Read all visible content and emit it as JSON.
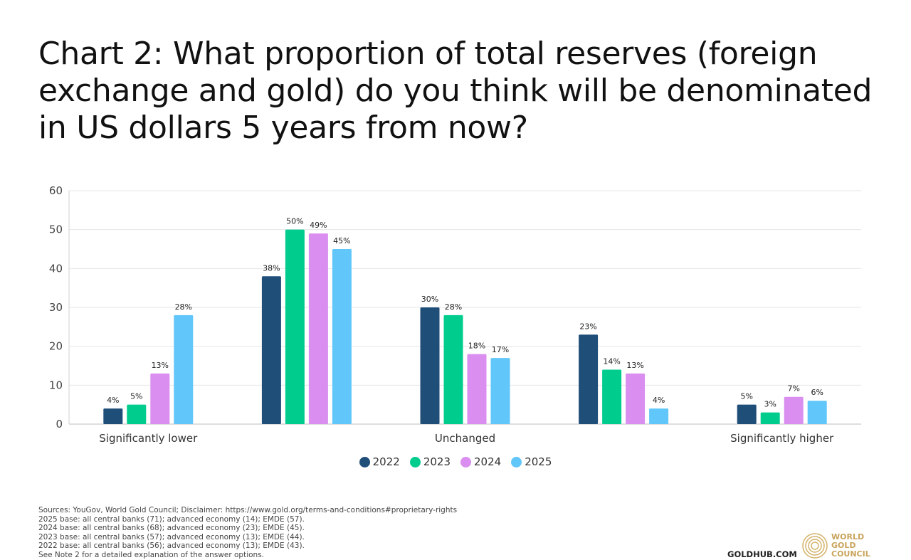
{
  "title_lines": [
    "Chart 2: What proportion of total reserves (foreign",
    "exchange and gold) do you think will be denominated",
    "in US dollars 5 years from now?"
  ],
  "chart_data": {
    "type": "bar",
    "categories": [
      "Significantly lower",
      "",
      "Unchanged",
      "",
      "Significantly higher"
    ],
    "series": [
      {
        "name": "2022",
        "color": "#1f4e79",
        "values": [
          4,
          38,
          30,
          23,
          5
        ],
        "labels": [
          "4%",
          "38%",
          "30%",
          "23%",
          "5%"
        ]
      },
      {
        "name": "2023",
        "color": "#00cc8e",
        "values": [
          5,
          50,
          28,
          14,
          3
        ],
        "labels": [
          "5%",
          "50%",
          "28%",
          "14%",
          "3%"
        ]
      },
      {
        "name": "2024",
        "color": "#d98ef0",
        "values": [
          13,
          49,
          18,
          13,
          7
        ],
        "labels": [
          "13%",
          "49%",
          "18%",
          "13%",
          "7%"
        ]
      },
      {
        "name": "2025",
        "color": "#61c6fa",
        "values": [
          28,
          45,
          17,
          4,
          6
        ],
        "labels": [
          "28%",
          "45%",
          "17%",
          "4%",
          "6%"
        ]
      }
    ],
    "ylim": [
      0,
      60
    ],
    "yticks": [
      "0",
      "10",
      "20",
      "30",
      "40",
      "50",
      "60"
    ],
    "grid": true,
    "legend_position": "bottom"
  },
  "footnotes": [
    "Sources: YouGov, World Gold Council; Disclaimer: https://www.gold.org/terms-and-conditions#proprietary-rights",
    "2025 base: all central banks (71); advanced economy (14); EMDE (57).",
    "2024 base: all central banks (68); advanced economy (23); EMDE (45).",
    "2023 base: all central banks (57); advanced economy (13); EMDE (44).",
    "2022 base: all central banks (56); advanced economy (13); EMDE (43).",
    "See Note 2 for a detailed explanation of the answer options."
  ],
  "branding": {
    "site": "GOLDHUB.COM",
    "logo_lines": [
      "WORLD",
      "GOLD",
      "COUNCIL"
    ],
    "logo_color": "#c9a45c"
  }
}
